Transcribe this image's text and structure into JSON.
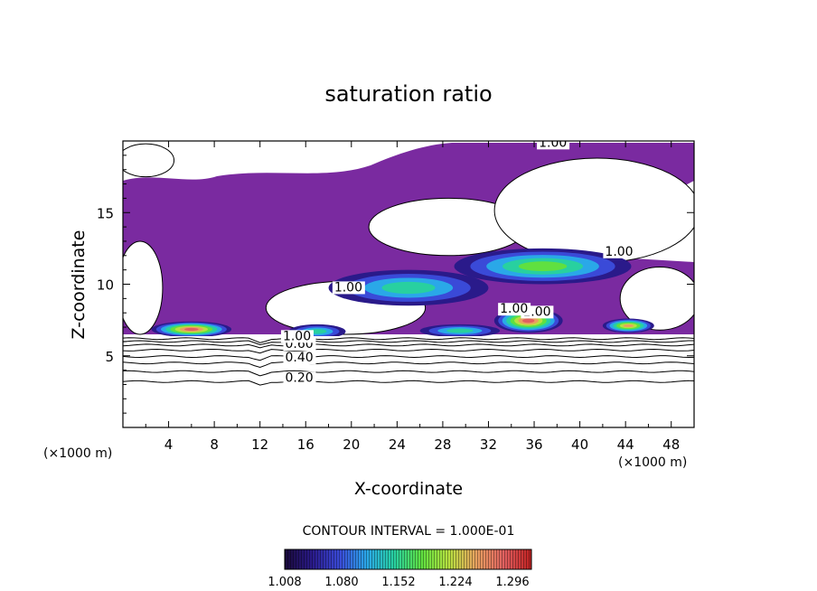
{
  "chart_data": {
    "type": "heatmap",
    "title": "saturation ratio",
    "xlabel": "X-coordinate",
    "ylabel": "Z-coordinate",
    "x_unit_left": "(×1000 m)",
    "x_unit_right": "(×1000 m)",
    "xlim": [
      0,
      50
    ],
    "ylim": [
      0,
      20
    ],
    "x_ticks": [
      4,
      8,
      12,
      16,
      20,
      24,
      28,
      32,
      36,
      40,
      44,
      48
    ],
    "y_ticks": [
      5,
      10,
      15
    ],
    "contour_interval_text": "CONTOUR INTERVAL = 1.000E-01",
    "colorbar": {
      "range": [
        1.008,
        1.32
      ],
      "tick_labels": [
        "1.008",
        "1.080",
        "1.152",
        "1.224",
        "1.296"
      ],
      "colors": [
        "#1a0a3a",
        "#2a1a8a",
        "#3a4ad8",
        "#2aa8e8",
        "#28d0a0",
        "#60e040",
        "#b8e040",
        "#e8a060",
        "#e06060",
        "#c02020"
      ]
    },
    "background_color": "#7a2aa0",
    "contour_lines": [
      {
        "value": 0.2,
        "z": 3.2
      },
      {
        "value": 0.3,
        "z": 3.9
      },
      {
        "value": 0.4,
        "z": 4.5
      },
      {
        "value": 0.5,
        "z": 4.95
      },
      {
        "value": 0.6,
        "z": 5.4
      },
      {
        "value": 0.7,
        "z": 5.75
      },
      {
        "value": 0.8,
        "z": 6.0
      },
      {
        "value": 0.9,
        "z": 6.2
      }
    ],
    "contour_labels": [
      {
        "text": "0.20",
        "x": 14.2,
        "z": 3.2
      },
      {
        "text": "0.40",
        "x": 14.2,
        "z": 4.6
      },
      {
        "text": "0.60",
        "x": 14.2,
        "z": 5.55
      },
      {
        "text": "1.00",
        "x": 14.0,
        "z": 6.1
      },
      {
        "text": "1.00",
        "x": 35.0,
        "z": 7.8
      },
      {
        "text": "1.00",
        "x": 33.0,
        "z": 8.0
      },
      {
        "text": "1.00",
        "x": 18.5,
        "z": 9.5
      },
      {
        "text": "1.00",
        "x": 42.2,
        "z": 12.0
      },
      {
        "text": "1.00",
        "x": 36.4,
        "z": 19.6
      }
    ],
    "supersaturated_bands": [
      {
        "name": "low-band-west",
        "x": [
          2.5,
          9.5
        ],
        "z": [
          6.3,
          7.4
        ],
        "max": 1.3
      },
      {
        "name": "low-band-center",
        "x": [
          14.5,
          19.5
        ],
        "z": [
          6.2,
          7.2
        ],
        "max": 1.15
      },
      {
        "name": "low-band-mid",
        "x": [
          26,
          33
        ],
        "z": [
          6.3,
          7.2
        ],
        "max": 1.16
      },
      {
        "name": "low-band-36",
        "x": [
          32.5,
          38.5
        ],
        "z": [
          6.6,
          8.3
        ],
        "max": 1.3
      },
      {
        "name": "low-band-east",
        "x": [
          42,
          46.5
        ],
        "z": [
          6.6,
          7.6
        ],
        "max": 1.26
      },
      {
        "name": "mid-cloud-24-32",
        "x": [
          18,
          32
        ],
        "z": [
          8.5,
          11.0
        ],
        "max": 1.16
      },
      {
        "name": "upper-cloud-32-44",
        "x": [
          29,
          44.5
        ],
        "z": [
          10.0,
          12.5
        ],
        "max": 1.18
      }
    ],
    "subsaturated_regions": [
      {
        "name": "left-upper-clear",
        "x": [
          0,
          4
        ],
        "z": [
          17.5,
          19.8
        ]
      },
      {
        "name": "left-lower-clear",
        "x": [
          0,
          3
        ],
        "z": [
          6.5,
          13.0
        ]
      },
      {
        "name": "center-clear",
        "x": [
          13,
          26
        ],
        "z": [
          6.5,
          10.2
        ]
      },
      {
        "name": "upper-mid-clear",
        "x": [
          22,
          35
        ],
        "z": [
          12.0,
          16.0
        ]
      },
      {
        "name": "right-upper-clear",
        "x": [
          33,
          50
        ],
        "z": [
          11.5,
          18.8
        ]
      },
      {
        "name": "right-lower-clear",
        "x": [
          44,
          50
        ],
        "z": [
          6.8,
          11.2
        ]
      }
    ]
  }
}
